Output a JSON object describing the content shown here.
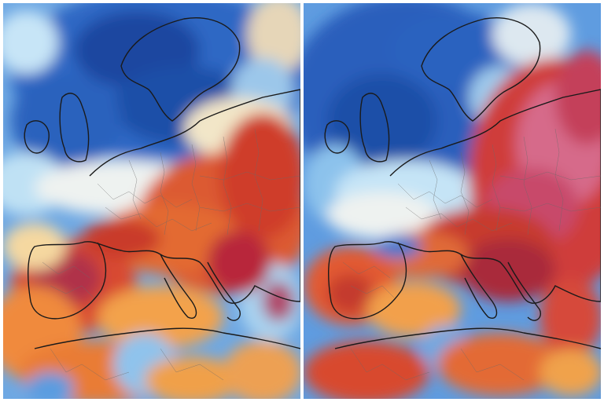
{
  "colors": {
    "deep_blue": "#1f4fa8",
    "mid_blue": "#3d79cf",
    "light_blue": "#7fb6ea",
    "pale_blue": "#c9e6f7",
    "white": "#f4f6f3",
    "pale_yellow": "#f7e3b0",
    "orange": "#f2a24a",
    "red_orange": "#e8682e",
    "red": "#cf3628",
    "dark_red": "#a51f2a",
    "crimson": "#b8344c",
    "magenta": "#cc5a7f",
    "pink": "#de8aa6",
    "border": "#1a1a1a",
    "region_border": "#6a6a6a"
  },
  "panels": [
    {
      "id": "left",
      "description_icon": "europe-map-icon"
    },
    {
      "id": "right",
      "description_icon": "europe-map-icon"
    }
  ]
}
